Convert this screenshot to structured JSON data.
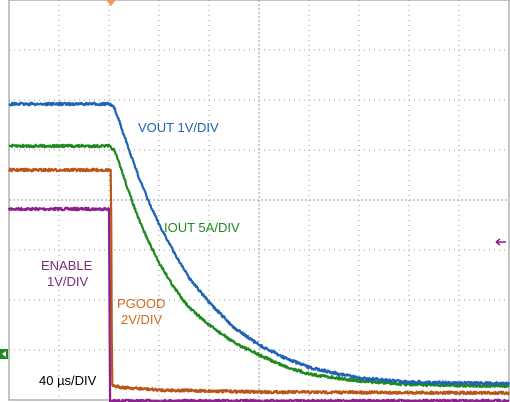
{
  "chart_data": {
    "type": "line",
    "title": "",
    "xlabel": "",
    "ylabel": "",
    "grid": true,
    "time_scale": "40 µs/DIV",
    "x_units": "divisions",
    "y_units": "divisions",
    "xlim": [
      0,
      10
    ],
    "ylim": [
      0,
      8
    ],
    "series": [
      {
        "name": "VOUT 1V/DIV",
        "color": "#1f63b4",
        "x": [
          0,
          2.0,
          2.1,
          2.2,
          2.4,
          2.6,
          2.8,
          3.0,
          3.3,
          3.6,
          4.0,
          4.5,
          5.0,
          5.5,
          6.0,
          7.0,
          8.0,
          9.0,
          10
        ],
        "y": [
          5.92,
          5.92,
          5.85,
          5.6,
          5.0,
          4.45,
          3.95,
          3.52,
          2.95,
          2.45,
          1.95,
          1.45,
          1.1,
          0.85,
          0.65,
          0.44,
          0.36,
          0.34,
          0.33
        ]
      },
      {
        "name": "IOUT 5A/DIV",
        "color": "#1e8a1e",
        "x": [
          0,
          2.0,
          2.1,
          2.2,
          2.4,
          2.6,
          2.8,
          3.0,
          3.3,
          3.6,
          4.0,
          4.5,
          5.0,
          5.5,
          6.0,
          7.0,
          8.0,
          9.0,
          10
        ],
        "y": [
          5.08,
          5.08,
          5.0,
          4.75,
          4.15,
          3.6,
          3.15,
          2.75,
          2.25,
          1.85,
          1.5,
          1.15,
          0.9,
          0.68,
          0.52,
          0.38,
          0.31,
          0.29,
          0.28
        ]
      },
      {
        "name": "PGOOD 2V/DIV",
        "color": "#b8551a",
        "x": [
          0,
          2.04,
          2.06,
          2.3,
          3.0,
          5.0,
          10
        ],
        "y": [
          4.6,
          4.6,
          0.28,
          0.25,
          0.2,
          0.16,
          0.14
        ]
      },
      {
        "name": "ENABLE 1V/DIV",
        "color": "#8c1f8c",
        "x": [
          0,
          2.0,
          2.02,
          10
        ],
        "y": [
          3.82,
          3.82,
          -0.02,
          -0.02
        ]
      }
    ],
    "annotations": [
      {
        "text": "VOUT 1V/DIV",
        "color": "#1f63b4"
      },
      {
        "text": "IOUT 5A/DIV",
        "color": "#1e8a1e"
      },
      {
        "text": "ENABLE",
        "color": "#7a2d7a"
      },
      {
        "text": "1V/DIV",
        "color": "#7a2d7a"
      },
      {
        "text": "PGOOD",
        "color": "#d2691e"
      },
      {
        "text": "2V/DIV",
        "color": "#d2691e"
      },
      {
        "text": "40 µs/DIV",
        "color": "#000000"
      }
    ]
  }
}
